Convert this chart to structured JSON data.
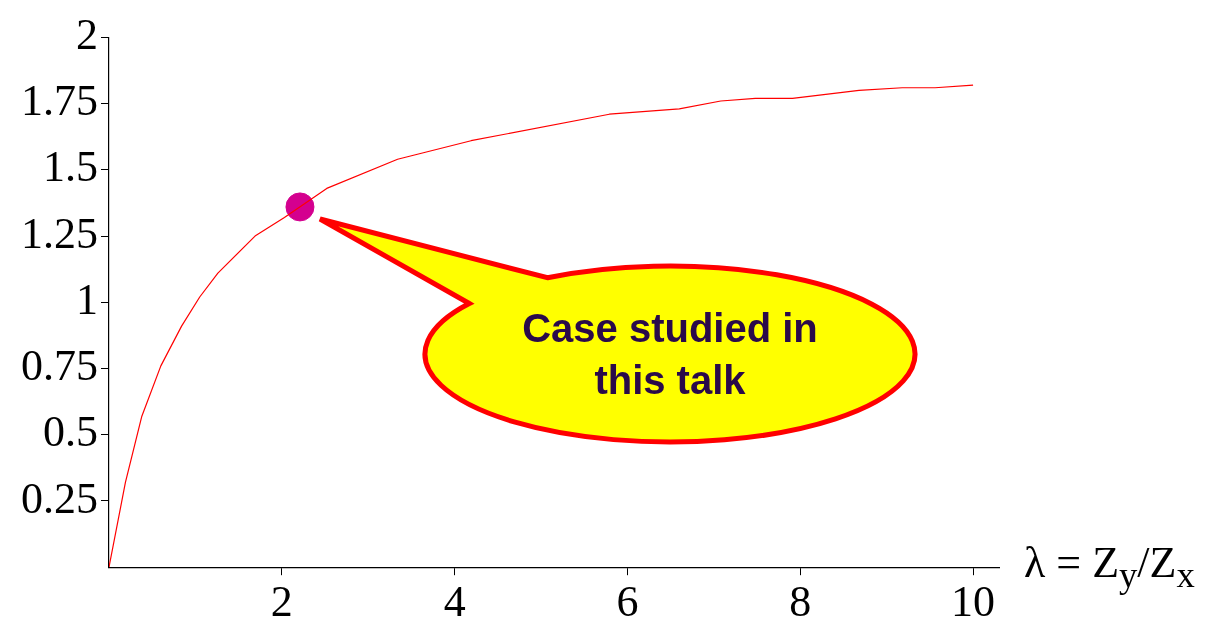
{
  "chart_data": {
    "type": "line",
    "xlabel": "λ = Z$_{y}$/Z$_{x}$",
    "x": [
      0,
      0.19,
      0.38,
      0.6,
      0.84,
      1.05,
      1.26,
      1.69,
      2.03,
      2.52,
      3.34,
      4.19,
      5.79,
      6.6,
      7.08,
      7.48,
      7.91,
      8.68,
      9.18,
      9.56,
      10
    ],
    "series": [
      {
        "color": "#ff0000",
        "values": [
          0,
          0.32,
          0.57,
          0.76,
          0.91,
          1.02,
          1.11,
          1.25,
          1.32,
          1.43,
          1.54,
          1.61,
          1.71,
          1.73,
          1.76,
          1.77,
          1.77,
          1.8,
          1.81,
          1.81,
          1.82
        ]
      },
      {
        "type": "scatter",
        "x": [
          2.21
        ],
        "color": "#d4008f",
        "values": [
          1.36
        ]
      }
    ],
    "xlim": [
      0,
      10.3
    ],
    "ylim": [
      0,
      2
    ],
    "xticks": [
      2,
      4,
      6,
      8,
      10
    ],
    "yticks": [
      0.25,
      0.5,
      0.75,
      1,
      1.25,
      1.5,
      1.75,
      2
    ],
    "grid": false,
    "annotations": [
      "Case studied in this talk"
    ]
  }
}
